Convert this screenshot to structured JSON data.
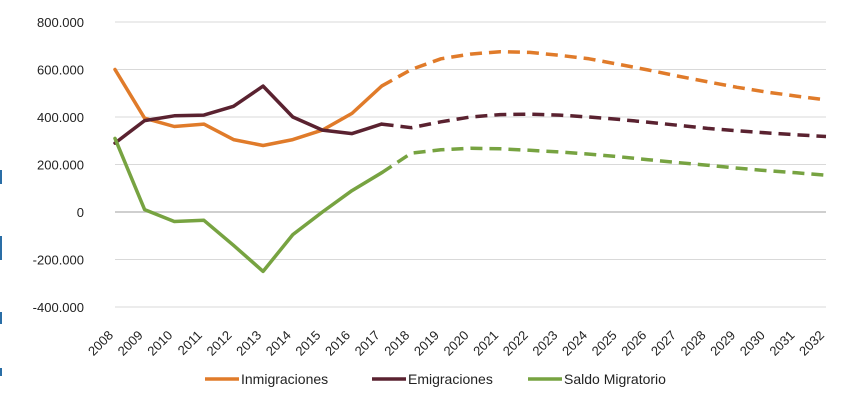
{
  "chart_data": {
    "type": "line",
    "title": "",
    "xlabel": "",
    "ylabel": "",
    "x": [
      2008,
      2009,
      2010,
      2011,
      2012,
      2013,
      2014,
      2015,
      2016,
      2017,
      2018,
      2019,
      2020,
      2021,
      2022,
      2023,
      2024,
      2025,
      2026,
      2027,
      2028,
      2029,
      2030,
      2031,
      2032
    ],
    "x_tick_labels": [
      "2008",
      "2009",
      "2010",
      "2011",
      "2012",
      "2013",
      "2014",
      "2015",
      "2016",
      "2017",
      "2018",
      "2019",
      "2020",
      "2021",
      "2022",
      "2023",
      "2024",
      "2025",
      "2026",
      "2027",
      "2028",
      "2029",
      "2030",
      "2031",
      "2032"
    ],
    "ylim": [
      -400000,
      800000
    ],
    "y_ticks": [
      -400000,
      -200000,
      0,
      200000,
      400000,
      600000,
      800000
    ],
    "y_tick_labels": [
      "-400.000",
      "-200.000",
      "0",
      "200.000",
      "400.000",
      "600.000",
      "800.000"
    ],
    "projection_start": 2017,
    "grid": true,
    "legend_position": "bottom",
    "series": [
      {
        "name": "Inmigraciones",
        "color": "#e07b2a",
        "values": [
          600000,
          395000,
          360000,
          370000,
          305000,
          280000,
          305000,
          345000,
          415000,
          530000,
          600000,
          645000,
          665000,
          675000,
          672000,
          660000,
          645000,
          622000,
          598000,
          572000,
          548000,
          525000,
          505000,
          488000,
          472000
        ]
      },
      {
        "name": "Emigraciones",
        "color": "#5a2230",
        "values": [
          290000,
          385000,
          405000,
          408000,
          445000,
          530000,
          400000,
          345000,
          330000,
          370000,
          355000,
          380000,
          400000,
          410000,
          412000,
          408000,
          400000,
          390000,
          378000,
          365000,
          352000,
          342000,
          333000,
          325000,
          318000
        ]
      },
      {
        "name": "Saldo Migratorio",
        "color": "#77a341",
        "values": [
          310000,
          10000,
          -40000,
          -35000,
          -140000,
          -250000,
          -95000,
          0,
          90000,
          165000,
          248000,
          262000,
          268000,
          266000,
          260000,
          253000,
          244000,
          233000,
          220000,
          208000,
          197000,
          185000,
          174000,
          165000,
          155000
        ]
      }
    ]
  }
}
